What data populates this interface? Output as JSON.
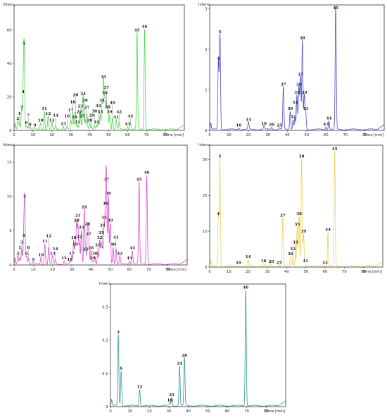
{
  "chart_data": [
    {
      "type": "line",
      "color": "#4fd84a",
      "xlabel": "Time [min]",
      "ylabel": "Intens.",
      "xlim": [
        0,
        90
      ],
      "ylim": [
        0,
        75
      ],
      "xticks": [
        0,
        10,
        20,
        30,
        40,
        50,
        60,
        70,
        80
      ],
      "yticks": [
        0,
        20,
        40,
        60
      ],
      "peaks": [
        {
          "label": "2",
          "t": 2.0,
          "h": 5
        },
        {
          "label": "1",
          "t": 2.8,
          "h": 3
        },
        {
          "label": "3",
          "t": 4.0,
          "h": 12
        },
        {
          "label": "4",
          "t": 4.8,
          "h": 21
        },
        {
          "label": "5",
          "t": 5.3,
          "h": 50
        },
        {
          "label": "6",
          "t": 6.5,
          "h": 2.5
        },
        {
          "label": "7",
          "t": 7.5,
          "h": 2
        },
        {
          "label": "8",
          "t": 8.5,
          "h": 1.5
        },
        {
          "label": "9",
          "t": 11,
          "h": 1
        },
        {
          "label": "10",
          "t": 14,
          "h": 4
        },
        {
          "label": "11",
          "t": 16,
          "h": 11
        },
        {
          "label": "12",
          "t": 18,
          "h": 8
        },
        {
          "label": "13",
          "t": 20,
          "h": 4
        },
        {
          "label": "14",
          "t": 22,
          "h": 2
        },
        {
          "label": "15",
          "t": 26,
          "h": 2
        },
        {
          "label": "16",
          "t": 28,
          "h": 1.5
        },
        {
          "label": "17",
          "t": 30,
          "h": 5
        },
        {
          "label": "18",
          "t": 31,
          "h": 10
        },
        {
          "label": "19",
          "t": 32,
          "h": 6
        },
        {
          "label": "20",
          "t": 32.5,
          "h": 9
        },
        {
          "label": "21",
          "t": 33.5,
          "h": 3
        },
        {
          "label": "22",
          "t": 34.5,
          "h": 4
        },
        {
          "label": "23",
          "t": 35,
          "h": 10
        },
        {
          "label": "24",
          "t": 36.5,
          "h": 20
        },
        {
          "label": "25",
          "t": 36,
          "h": 4
        },
        {
          "label": "26",
          "t": 37.5,
          "h": 6
        },
        {
          "label": "27",
          "t": 38.5,
          "h": 9
        },
        {
          "label": "28",
          "t": 40,
          "h": 4
        },
        {
          "label": "29",
          "t": 41,
          "h": 2
        },
        {
          "label": "30",
          "t": 42.5,
          "h": 2
        },
        {
          "label": "31",
          "t": 43.5,
          "h": 3
        },
        {
          "label": "32",
          "t": 44.5,
          "h": 5
        },
        {
          "label": "33",
          "t": 45.5,
          "h": 9
        },
        {
          "label": "34",
          "t": 46.5,
          "h": 16
        },
        {
          "label": "35",
          "t": 47.3,
          "h": 30
        },
        {
          "label": "36",
          "t": 48,
          "h": 18
        },
        {
          "label": "37",
          "t": 48.8,
          "h": 16
        },
        {
          "label": "38",
          "t": 49.5,
          "h": 12
        },
        {
          "label": "39",
          "t": 50.5,
          "h": 9
        },
        {
          "label": "40",
          "t": 52,
          "h": 7
        },
        {
          "label": "41",
          "t": 54,
          "h": 6
        },
        {
          "label": "42",
          "t": 55.5,
          "h": 4
        },
        {
          "label": "43",
          "t": 60,
          "h": 2
        },
        {
          "label": "44",
          "t": 61.5,
          "h": 4
        },
        {
          "label": "45",
          "t": 65,
          "h": 58
        },
        {
          "label": "46",
          "t": 69,
          "h": 60
        }
      ]
    },
    {
      "type": "line",
      "color": "#4e4ed0",
      "xlabel": "Time [min]",
      "ylabel": "Intens.",
      "xlim": [
        0,
        90
      ],
      "ylim": [
        0,
        3.1
      ],
      "xticks": [
        0,
        10,
        20,
        30,
        40,
        50,
        60,
        70,
        80
      ],
      "yticks": [
        0,
        1,
        2,
        3
      ],
      "peaks": [
        {
          "label": "4",
          "t": 4.5,
          "h": 1.7
        },
        {
          "label": "5",
          "t": 5.3,
          "h": 2.35
        },
        {
          "label": "10",
          "t": 15,
          "h": 0.04
        },
        {
          "label": "14",
          "t": 20,
          "h": 0.18
        },
        {
          "label": "16",
          "t": 28,
          "h": 0.09
        },
        {
          "label": "20",
          "t": 32,
          "h": 0.06
        },
        {
          "label": "25",
          "t": 36,
          "h": 0.04
        },
        {
          "label": "27",
          "t": 38,
          "h": 1.05
        },
        {
          "label": "30",
          "t": 41.5,
          "h": 0.45
        },
        {
          "label": "32",
          "t": 43,
          "h": 0.25
        },
        {
          "label": "33",
          "t": 44,
          "h": 0.3
        },
        {
          "label": "35",
          "t": 45,
          "h": 0.85
        },
        {
          "label": "36",
          "t": 46,
          "h": 1.05
        },
        {
          "label": "37",
          "t": 46.8,
          "h": 1.3
        },
        {
          "label": "38",
          "t": 47.8,
          "h": 2.2
        },
        {
          "label": "39",
          "t": 48.8,
          "h": 0.85
        },
        {
          "label": "41",
          "t": 49.5,
          "h": 0.45
        },
        {
          "label": "43",
          "t": 60,
          "h": 0.07
        },
        {
          "label": "44",
          "t": 61.5,
          "h": 0.22
        },
        {
          "label": "45",
          "t": 65,
          "h": 3.05
        }
      ]
    },
    {
      "type": "line",
      "color": "#df4fd6",
      "xlabel": "Time [min]",
      "ylabel": "Intens.",
      "xlim": [
        0,
        90
      ],
      "ylim": [
        0,
        17.5
      ],
      "xticks": [
        0,
        10,
        20,
        30,
        40,
        50,
        60,
        70,
        80
      ],
      "yticks": [
        0,
        5,
        10,
        15
      ],
      "peaks": [
        {
          "label": "2",
          "t": 2,
          "h": 1.2
        },
        {
          "label": "1",
          "t": 3,
          "h": 0.8
        },
        {
          "label": "3",
          "t": 4,
          "h": 2.2
        },
        {
          "label": "4",
          "t": 5,
          "h": 3.8
        },
        {
          "label": "5",
          "t": 5.5,
          "h": 9.5
        },
        {
          "label": "6",
          "t": 6.5,
          "h": 1.2
        },
        {
          "label": "8",
          "t": 7.5,
          "h": 0.8
        },
        {
          "label": "9",
          "t": 10,
          "h": 0.3
        },
        {
          "label": "10",
          "t": 14,
          "h": 1
        },
        {
          "label": "11",
          "t": 16,
          "h": 3
        },
        {
          "label": "12",
          "t": 18,
          "h": 2.5
        },
        {
          "label": "13",
          "t": 20,
          "h": 1.2
        },
        {
          "label": "14",
          "t": 21.5,
          "h": 0.6
        },
        {
          "label": "15",
          "t": 26,
          "h": 0.5
        },
        {
          "label": "16",
          "t": 29,
          "h": 0.3
        },
        {
          "label": "17",
          "t": 30,
          "h": 1.2
        },
        {
          "label": "18",
          "t": 31,
          "h": 3.5
        },
        {
          "label": "19",
          "t": 31.8,
          "h": 2.5
        },
        {
          "label": "20",
          "t": 32.5,
          "h": 6
        },
        {
          "label": "21",
          "t": 33.2,
          "h": 5.5
        },
        {
          "label": "22",
          "t": 34,
          "h": 3
        },
        {
          "label": "23",
          "t": 35,
          "h": 5
        },
        {
          "label": "24",
          "t": 36.5,
          "h": 8
        },
        {
          "label": "25",
          "t": 37.2,
          "h": 1.8
        },
        {
          "label": "26",
          "t": 38.2,
          "h": 5.5
        },
        {
          "label": "27",
          "t": 38.8,
          "h": 4
        },
        {
          "label": "28",
          "t": 40,
          "h": 2
        },
        {
          "label": "29",
          "t": 41,
          "h": 0.5
        },
        {
          "label": "30",
          "t": 42,
          "h": 1.2
        },
        {
          "label": "31",
          "t": 43.5,
          "h": 1.8
        },
        {
          "label": "32",
          "t": 44.5,
          "h": 3.5
        },
        {
          "label": "33",
          "t": 45.3,
          "h": 3
        },
        {
          "label": "34",
          "t": 46,
          "h": 2.2
        },
        {
          "label": "35",
          "t": 46.8,
          "h": 5.2
        },
        {
          "label": "36",
          "t": 47.5,
          "h": 8.5
        },
        {
          "label": "37",
          "t": 48,
          "h": 12
        },
        {
          "label": "38",
          "t": 49,
          "h": 10
        },
        {
          "label": "39",
          "t": 50,
          "h": 6
        },
        {
          "label": "40",
          "t": 51.5,
          "h": 2.5
        },
        {
          "label": "41",
          "t": 53,
          "h": 2.3
        },
        {
          "label": "42",
          "t": 55,
          "h": 1.2
        },
        {
          "label": "43",
          "t": 60,
          "h": 0.5
        },
        {
          "label": "44",
          "t": 61.5,
          "h": 2
        },
        {
          "label": "45",
          "t": 65,
          "h": 12
        },
        {
          "label": "46",
          "t": 69,
          "h": 13
        }
      ]
    },
    {
      "type": "line",
      "color": "#eed15a",
      "xlabel": "Time [min]",
      "ylabel": "Intens.",
      "xlim": [
        0,
        90
      ],
      "ylim": [
        0,
        34
      ],
      "xticks": [
        0,
        10,
        20,
        30,
        40,
        50,
        60,
        70,
        80
      ],
      "yticks": [
        0,
        10,
        20,
        30
      ],
      "peaks": [
        {
          "label": "4",
          "t": 4.5,
          "h": 14
        },
        {
          "label": "5",
          "t": 5.3,
          "h": 30
        },
        {
          "label": "10",
          "t": 15,
          "h": 0.3
        },
        {
          "label": "14",
          "t": 20,
          "h": 2
        },
        {
          "label": "16",
          "t": 28,
          "h": 0.8
        },
        {
          "label": "20",
          "t": 32,
          "h": 0.6
        },
        {
          "label": "25",
          "t": 36,
          "h": 0.3
        },
        {
          "label": "27",
          "t": 38,
          "h": 13.5
        },
        {
          "label": "30",
          "t": 42,
          "h": 2.8
        },
        {
          "label": "32",
          "t": 43.2,
          "h": 1.8
        },
        {
          "label": "33",
          "t": 44.5,
          "h": 2.5
        },
        {
          "label": "35",
          "t": 45.5,
          "h": 11
        },
        {
          "label": "36",
          "t": 46.5,
          "h": 14
        },
        {
          "label": "38",
          "t": 47.8,
          "h": 30
        },
        {
          "label": "39",
          "t": 48.8,
          "h": 9
        },
        {
          "label": "41",
          "t": 49.8,
          "h": 0.8
        },
        {
          "label": "43",
          "t": 60,
          "h": 0.3
        },
        {
          "label": "44",
          "t": 61.5,
          "h": 9.5
        },
        {
          "label": "45",
          "t": 65,
          "h": 32
        }
      ]
    },
    {
      "type": "line",
      "color": "#2f9a96",
      "xlabel": "Time [min]",
      "ylabel": "Intens.",
      "xlim": [
        0,
        90
      ],
      "ylim": [
        0,
        0.37
      ],
      "xticks": [
        0,
        10,
        20,
        30,
        40,
        50,
        60,
        70,
        80
      ],
      "yticks": [
        0,
        0.1,
        0.2,
        0.3
      ],
      "peaks": [
        {
          "label": "3",
          "t": 4,
          "h": 0.215
        },
        {
          "label": "6",
          "t": 5.5,
          "h": 0.105
        },
        {
          "label": "12",
          "t": 15,
          "h": 0.05
        },
        {
          "label": "18",
          "t": 30.5,
          "h": 0.01
        },
        {
          "label": "21",
          "t": 31.5,
          "h": 0.025
        },
        {
          "label": "24",
          "t": 35.5,
          "h": 0.12
        },
        {
          "label": "28",
          "t": 38,
          "h": 0.145
        },
        {
          "label": "46",
          "t": 69.5,
          "h": 0.35
        }
      ]
    }
  ]
}
